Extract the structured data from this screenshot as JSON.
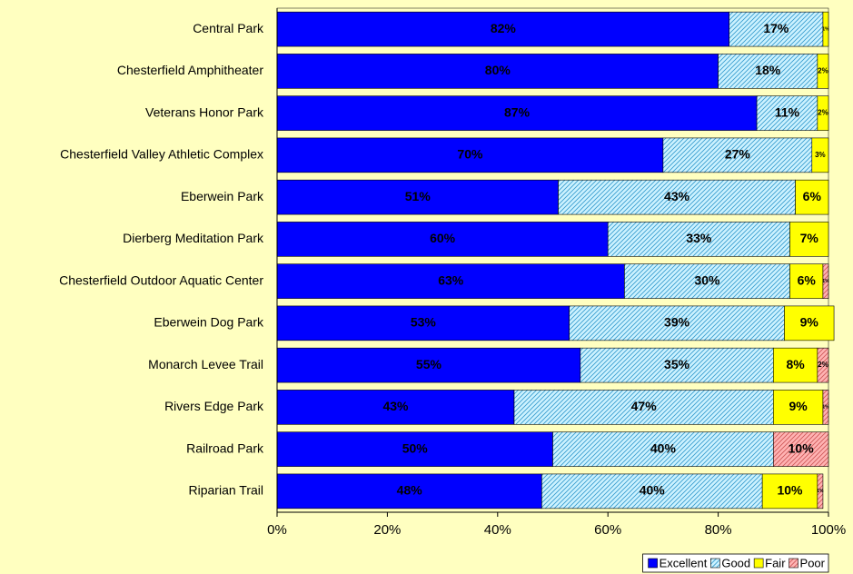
{
  "chart_data": {
    "type": "stacked_barh",
    "categories": [
      "Central Park",
      "Chesterfield Amphitheater",
      "Veterans Honor Park",
      "Chesterfield Valley Athletic Complex",
      "Eberwein Park",
      "Dierberg Meditation Park",
      "Chesterfield Outdoor Aquatic Center",
      "Eberwein Dog Park",
      "Monarch Levee Trail",
      "Rivers Edge Park",
      "Railroad Park",
      "Riparian Trail"
    ],
    "series": [
      {
        "name": "Excellent",
        "color": "#0000ff",
        "hatch": false,
        "values": [
          82,
          80,
          87,
          70,
          51,
          60,
          63,
          53,
          55,
          43,
          50,
          48
        ],
        "value_labels": [
          "82%",
          "80%",
          "87%",
          "70%",
          "51%",
          "60%",
          "63%",
          "53%",
          "55%",
          "43%",
          "50%",
          "48%"
        ]
      },
      {
        "name": "Good",
        "color": "#ccf2ff",
        "hatch": true,
        "hatch_color": "#3399cc",
        "values": [
          17,
          18,
          11,
          27,
          43,
          33,
          30,
          39,
          35,
          47,
          40,
          40
        ],
        "value_labels": [
          "17%",
          "18%",
          "11%",
          "27%",
          "43%",
          "33%",
          "30%",
          "39%",
          "35%",
          "47%",
          "40%",
          "40%"
        ]
      },
      {
        "name": "Fair",
        "color": "#ffff00",
        "hatch": false,
        "values": [
          1,
          2,
          2,
          3,
          6,
          7,
          6,
          9,
          8,
          9,
          0,
          10
        ],
        "value_labels": [
          "1%",
          "2%",
          "2%",
          "3%",
          "6%",
          "7%",
          "6%",
          "9%",
          "8%",
          "9%",
          null,
          "10%"
        ]
      },
      {
        "name": "Poor",
        "color": "#ffb3b3",
        "hatch": true,
        "hatch_color": "#cc5555",
        "values": [
          0,
          0,
          0,
          0,
          0,
          0,
          1,
          0,
          2,
          1,
          10,
          1
        ],
        "value_labels": [
          null,
          null,
          null,
          null,
          null,
          null,
          "1%",
          null,
          "2%",
          "1%",
          "10%",
          "1%"
        ]
      }
    ],
    "xlim": [
      0,
      100
    ],
    "xticks": [
      {
        "value": 0,
        "label": "0%"
      },
      {
        "value": 20,
        "label": "20%"
      },
      {
        "value": 40,
        "label": "40%"
      },
      {
        "value": 60,
        "label": "60%"
      },
      {
        "value": 80,
        "label": "80%"
      },
      {
        "value": 100,
        "label": "100%"
      }
    ],
    "legend": "bottom-right"
  }
}
